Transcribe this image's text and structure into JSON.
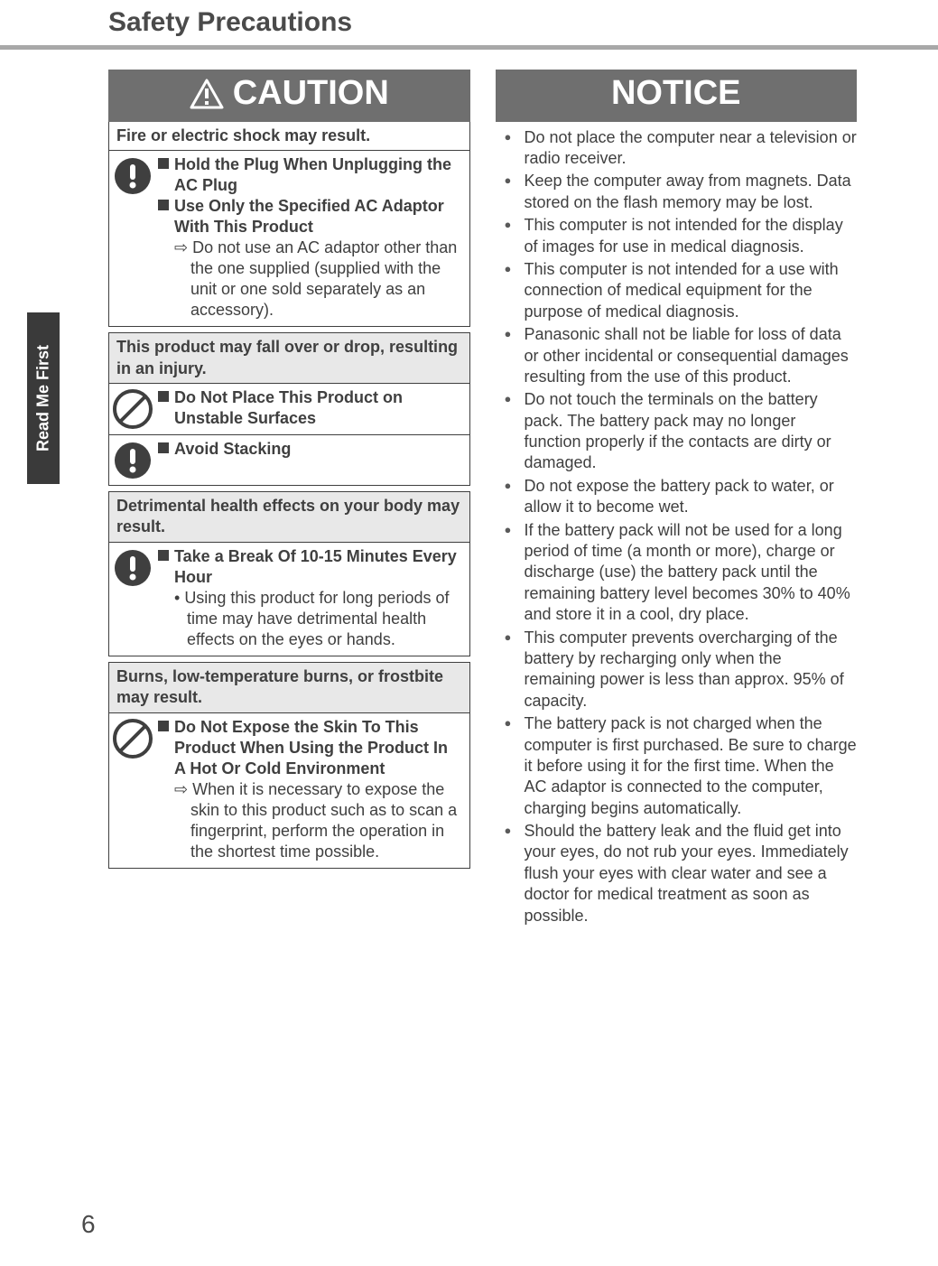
{
  "page": {
    "title": "Safety Precautions",
    "number": "6",
    "side_tab": "Read Me First"
  },
  "caution": {
    "banner": "CAUTION",
    "groups": [
      {
        "header": "Fire or electric shock may result.",
        "shaded": false,
        "items": [
          {
            "icon": "mandatory",
            "lines": [
              {
                "type": "sq",
                "bold": true,
                "text": "Hold the Plug When Unplugging the AC Plug"
              },
              {
                "type": "sq",
                "bold": true,
                "text": "Use Only the Specified AC Adaptor With This Product"
              },
              {
                "type": "arrow",
                "indent": 1,
                "text": "Do not use an AC adaptor other than the one supplied (supplied with the unit or one sold separately as an accessory)."
              }
            ]
          }
        ]
      },
      {
        "header": "This product may fall over or drop, resulting in an injury.",
        "shaded": true,
        "items": [
          {
            "icon": "prohibit",
            "lines": [
              {
                "type": "sq",
                "bold": true,
                "text": "Do Not Place This Product on Unstable Surfaces"
              }
            ]
          },
          {
            "icon": "mandatory",
            "lines": [
              {
                "type": "sq",
                "bold": true,
                "text": "Avoid Stacking"
              }
            ]
          }
        ]
      },
      {
        "header": "Detrimental health effects on your body may result.",
        "shaded": true,
        "items": [
          {
            "icon": "mandatory",
            "lines": [
              {
                "type": "sq",
                "bold": true,
                "text": "Take a Break Of 10-15 Minutes Every Hour"
              },
              {
                "type": "dot",
                "indent": 1,
                "text": "Using this product for long periods of time may have detrimental health effects on the eyes or hands."
              }
            ]
          }
        ]
      },
      {
        "header": "Burns, low-temperature burns, or frostbite may result.",
        "shaded": true,
        "items": [
          {
            "icon": "prohibit",
            "lines": [
              {
                "type": "sq",
                "bold": true,
                "text": "Do Not Expose the Skin To This Product When Using the Product In A Hot Or Cold Environment"
              },
              {
                "type": "arrow",
                "indent": 1,
                "text": "When it is necessary to expose the skin to this product such as to scan a fingerprint, perform the operation in the shortest time possible."
              }
            ]
          }
        ]
      }
    ]
  },
  "notice": {
    "banner": "NOTICE",
    "items": [
      "Do not place the computer near a television or radio receiver.",
      "Keep the computer away from magnets. Data stored on the flash memory may be lost.",
      "This computer is not intended for the display of images for use in medical diagnosis.",
      "This computer is not intended for a use with connection of medical equipment for the purpose of medical diagnosis.",
      "Panasonic shall not be liable for loss of data or other incidental or consequential damages resulting from the use of this product.",
      "Do not touch the terminals on the battery pack. The battery pack may no longer function properly if the contacts are dirty or damaged.",
      "Do not expose the battery pack to water, or allow it to become wet.",
      "If the battery pack will not be used for a long period of time (a month or more), charge or discharge (use) the battery pack until the remaining battery level becomes 30% to 40% and store it in a cool, dry place.",
      "This computer prevents overcharging of the battery by recharging only when the remaining power is less than approx. 95% of capacity.",
      "The battery pack is not charged when the computer is first purchased. Be sure to charge it before using it for the first time. When the AC adaptor is connected to the computer, charging begins automatically.",
      "Should the battery leak and the fluid get into your eyes, do not rub your eyes. Immediately flush your eyes with clear water and see a doctor for medical treatment as soon as possible."
    ]
  }
}
